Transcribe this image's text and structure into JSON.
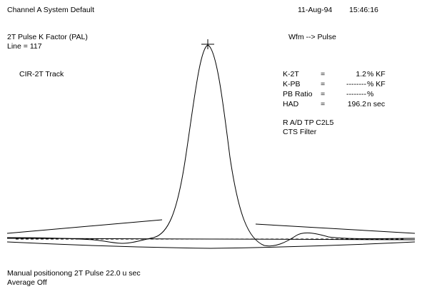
{
  "header": {
    "title": "Channel A System Default",
    "date": "11-Aug-94",
    "time": "15:46:16"
  },
  "measurement": {
    "name": "2T Pulse K Factor (PAL)",
    "line": "Line = 117",
    "source": "CIR-2T Track",
    "mode": "Wfm --> Pulse"
  },
  "readings": [
    {
      "label": "K-2T",
      "eq": "=",
      "value": "1.2",
      "unit": "% KF"
    },
    {
      "label": "K-PB",
      "eq": "=",
      "value": "--------",
      "unit": "% KF"
    },
    {
      "label": "PB Ratio",
      "eq": "=",
      "value": "--------",
      "unit": "%"
    },
    {
      "label": "HAD",
      "eq": "=",
      "value": "196.2",
      "unit": "n sec"
    }
  ],
  "info": {
    "test_point": "R A/D TP C2L5",
    "filter": "CTS Filter"
  },
  "footer": {
    "position": "Manual positionong 2T Pulse 22.0 u sec",
    "average": "Average Off"
  },
  "colors": {
    "background": "#ffffff",
    "trace": "#000000",
    "text": "#000000"
  }
}
